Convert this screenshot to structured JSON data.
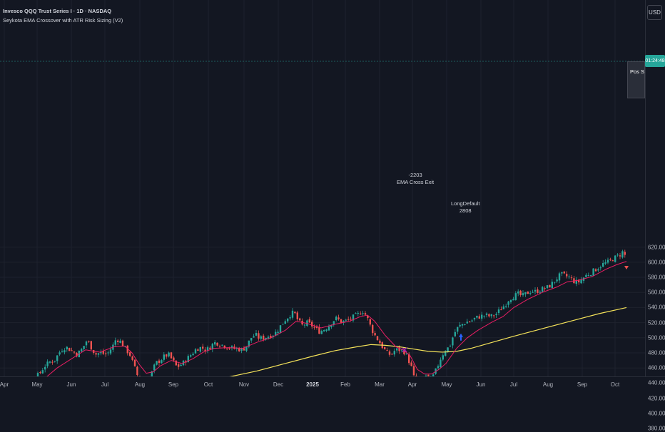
{
  "legend": {
    "title": "Invesco QQQ Trust Series I · 1D · NASDAQ",
    "indicator": "Seykota EMA Crossover with ATR Risk Sizing (V2)"
  },
  "currency_label": "USD",
  "last_price_badge": "01:24:48",
  "pos_sizing_label": "Pos Sizin",
  "colors": {
    "background": "#131722",
    "candle_up": "#26a69a",
    "candle_down": "#ef5350",
    "ema_fast": "#e91e63",
    "sma_slow": "#f5e35a",
    "grid": "#1e222d",
    "annotation_marker": "#9c27b0",
    "long_arrow": "#2962ff"
  },
  "annotations": {
    "exit_trade": {
      "qty": "-2203",
      "label": "EMA Cross Exit"
    },
    "entry_trade": {
      "label": "LongDefault",
      "qty": "2808"
    }
  },
  "chart_data": {
    "type": "candlestick",
    "price_axis": {
      "min": 370,
      "max": 630,
      "ticks": [
        "620.00",
        "600.00",
        "580.00",
        "560.00",
        "540.00",
        "520.00",
        "500.00",
        "480.00",
        "460.00",
        "440.00",
        "420.00",
        "400.00",
        "380.00"
      ]
    },
    "time_axis": {
      "ticks": [
        "Apr",
        "May",
        "Jun",
        "Jul",
        "Aug",
        "Sep",
        "Oct",
        "Nov",
        "Dec",
        "2025",
        "Feb",
        "Mar",
        "Apr",
        "May",
        "Jun",
        "Jul",
        "Aug",
        "Sep",
        "Oct"
      ],
      "bold_tick": "2025"
    },
    "close_path": [
      [
        0,
        445
      ],
      [
        12,
        440
      ],
      [
        20,
        430
      ],
      [
        26,
        422
      ],
      [
        32,
        428
      ],
      [
        40,
        437
      ],
      [
        48,
        446
      ],
      [
        55,
        452
      ],
      [
        62,
        462
      ],
      [
        70,
        468
      ],
      [
        76,
        470
      ],
      [
        85,
        483
      ],
      [
        92,
        488
      ],
      [
        100,
        483
      ],
      [
        108,
        478
      ],
      [
        115,
        485
      ],
      [
        122,
        497
      ],
      [
        128,
        487
      ],
      [
        134,
        478
      ],
      [
        140,
        480
      ],
      [
        150,
        478
      ],
      [
        158,
        489
      ],
      [
        163,
        499
      ],
      [
        170,
        494
      ],
      [
        176,
        485
      ],
      [
        182,
        478
      ],
      [
        188,
        462
      ],
      [
        192,
        452
      ],
      [
        196,
        440
      ],
      [
        200,
        433
      ],
      [
        206,
        440
      ],
      [
        212,
        452
      ],
      [
        218,
        466
      ],
      [
        224,
        470
      ],
      [
        230,
        475
      ],
      [
        236,
        478
      ],
      [
        242,
        470
      ],
      [
        248,
        461
      ],
      [
        256,
        466
      ],
      [
        262,
        472
      ],
      [
        270,
        480
      ],
      [
        276,
        486
      ],
      [
        282,
        487
      ],
      [
        290,
        484
      ],
      [
        296,
        490
      ],
      [
        302,
        494
      ],
      [
        310,
        491
      ],
      [
        318,
        488
      ],
      [
        326,
        486
      ],
      [
        334,
        485
      ],
      [
        340,
        484
      ],
      [
        346,
        490
      ],
      [
        352,
        500
      ],
      [
        358,
        504
      ],
      [
        364,
        499
      ],
      [
        370,
        500
      ],
      [
        376,
        502
      ],
      [
        382,
        504
      ],
      [
        388,
        508
      ],
      [
        394,
        517
      ],
      [
        400,
        524
      ],
      [
        406,
        530
      ],
      [
        412,
        534
      ],
      [
        418,
        522
      ],
      [
        424,
        516
      ],
      [
        430,
        520
      ],
      [
        436,
        517
      ],
      [
        442,
        512
      ],
      [
        448,
        508
      ],
      [
        454,
        511
      ],
      [
        460,
        515
      ],
      [
        466,
        522
      ],
      [
        472,
        526
      ],
      [
        478,
        521
      ],
      [
        484,
        522
      ],
      [
        490,
        524
      ],
      [
        496,
        528
      ],
      [
        502,
        531
      ],
      [
        508,
        536
      ],
      [
        514,
        528
      ],
      [
        518,
        518
      ],
      [
        524,
        505
      ],
      [
        530,
        497
      ],
      [
        536,
        488
      ],
      [
        542,
        480
      ],
      [
        548,
        477
      ],
      [
        554,
        484
      ],
      [
        560,
        484
      ],
      [
        566,
        482
      ],
      [
        570,
        476
      ],
      [
        576,
        463
      ],
      [
        580,
        448
      ],
      [
        584,
        428
      ],
      [
        588,
        424
      ],
      [
        592,
        440
      ],
      [
        596,
        452
      ],
      [
        600,
        444
      ],
      [
        606,
        447
      ],
      [
        612,
        459
      ],
      [
        618,
        474
      ],
      [
        624,
        484
      ],
      [
        630,
        488
      ],
      [
        636,
        505
      ],
      [
        642,
        514
      ],
      [
        648,
        518
      ],
      [
        654,
        521
      ],
      [
        660,
        522
      ],
      [
        666,
        526
      ],
      [
        672,
        528
      ],
      [
        680,
        530
      ],
      [
        688,
        528
      ],
      [
        696,
        532
      ],
      [
        702,
        538
      ],
      [
        708,
        544
      ],
      [
        714,
        552
      ],
      [
        720,
        555
      ],
      [
        726,
        558
      ],
      [
        732,
        555
      ],
      [
        738,
        559
      ],
      [
        744,
        562
      ],
      [
        750,
        561
      ],
      [
        756,
        563
      ],
      [
        762,
        565
      ],
      [
        768,
        567
      ],
      [
        774,
        572
      ],
      [
        780,
        578
      ],
      [
        786,
        584
      ],
      [
        792,
        582
      ],
      [
        798,
        580
      ],
      [
        804,
        575
      ],
      [
        810,
        573
      ],
      [
        816,
        578
      ],
      [
        822,
        583
      ],
      [
        828,
        586
      ],
      [
        834,
        590
      ],
      [
        840,
        594
      ],
      [
        846,
        598
      ],
      [
        852,
        600
      ],
      [
        858,
        604
      ],
      [
        864,
        607
      ],
      [
        870,
        611
      ],
      [
        874,
        615
      ],
      [
        878,
        602
      ]
    ],
    "ema_fast_path": [
      [
        0,
        445
      ],
      [
        20,
        438
      ],
      [
        40,
        434
      ],
      [
        60,
        444
      ],
      [
        80,
        460
      ],
      [
        100,
        472
      ],
      [
        120,
        484
      ],
      [
        140,
        481
      ],
      [
        160,
        488
      ],
      [
        175,
        489
      ],
      [
        185,
        480
      ],
      [
        195,
        465
      ],
      [
        205,
        453
      ],
      [
        215,
        455
      ],
      [
        225,
        463
      ],
      [
        240,
        470
      ],
      [
        255,
        466
      ],
      [
        270,
        472
      ],
      [
        285,
        481
      ],
      [
        300,
        486
      ],
      [
        320,
        487
      ],
      [
        340,
        486
      ],
      [
        360,
        494
      ],
      [
        380,
        500
      ],
      [
        400,
        510
      ],
      [
        415,
        522
      ],
      [
        430,
        519
      ],
      [
        450,
        513
      ],
      [
        470,
        518
      ],
      [
        490,
        522
      ],
      [
        505,
        528
      ],
      [
        515,
        530
      ],
      [
        525,
        522
      ],
      [
        540,
        503
      ],
      [
        555,
        488
      ],
      [
        565,
        484
      ],
      [
        575,
        476
      ],
      [
        585,
        458
      ],
      [
        595,
        452
      ],
      [
        605,
        452
      ],
      [
        615,
        458
      ],
      [
        625,
        466
      ],
      [
        640,
        486
      ],
      [
        655,
        500
      ],
      [
        670,
        510
      ],
      [
        690,
        521
      ],
      [
        705,
        528
      ],
      [
        720,
        540
      ],
      [
        740,
        551
      ],
      [
        760,
        560
      ],
      [
        780,
        567
      ],
      [
        795,
        574
      ],
      [
        810,
        576
      ],
      [
        830,
        581
      ],
      [
        850,
        591
      ],
      [
        865,
        597
      ],
      [
        878,
        601
      ]
    ],
    "sma_slow_path": [
      [
        0,
        391
      ],
      [
        40,
        397
      ],
      [
        80,
        405
      ],
      [
        120,
        413
      ],
      [
        160,
        421
      ],
      [
        200,
        430
      ],
      [
        240,
        436
      ],
      [
        280,
        441
      ],
      [
        320,
        448
      ],
      [
        360,
        456
      ],
      [
        400,
        466
      ],
      [
        440,
        476
      ],
      [
        470,
        483
      ],
      [
        500,
        488
      ],
      [
        520,
        491
      ],
      [
        540,
        490
      ],
      [
        560,
        488
      ],
      [
        580,
        485
      ],
      [
        600,
        482
      ],
      [
        620,
        481
      ],
      [
        640,
        482
      ],
      [
        660,
        486
      ],
      [
        690,
        494
      ],
      [
        720,
        502
      ],
      [
        760,
        512
      ],
      [
        800,
        522
      ],
      [
        840,
        532
      ],
      [
        878,
        540
      ]
    ]
  }
}
